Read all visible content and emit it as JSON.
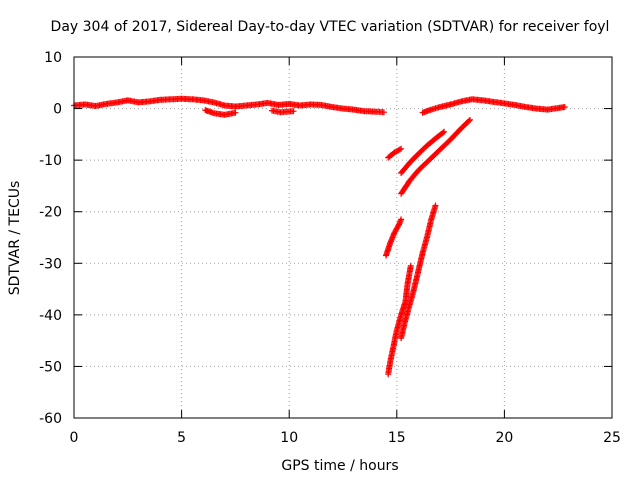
{
  "chart_data": {
    "type": "scatter",
    "title": "Day 304 of 2017, Sidereal Day-to-day VTEC variation (SDTVAR) for receiver foyl",
    "xlabel": "GPS time / hours",
    "ylabel": "SDTVAR / TECUs",
    "xlim": [
      0,
      25
    ],
    "ylim": [
      -60,
      10
    ],
    "xticks": [
      "0",
      "5",
      "10",
      "15",
      "20",
      "25"
    ],
    "yticks": [
      "10",
      "0",
      "-10",
      "-20",
      "-30",
      "-40",
      "-50",
      "-60"
    ],
    "grid": true,
    "marker": "plus",
    "color": "#ff0000",
    "series": [
      {
        "segments": [
          {
            "x": [
              0.0,
              0.5,
              1.0,
              1.5,
              2.0,
              2.5,
              3.0,
              3.5,
              4.0,
              4.5,
              5.0,
              5.5,
              6.0,
              6.5,
              7.0,
              7.5,
              8.0,
              8.5,
              9.0,
              9.5,
              10.0,
              10.5,
              11.0,
              11.5,
              12.0,
              12.5,
              13.0,
              13.5,
              14.0,
              14.4
            ],
            "y": [
              0.6,
              0.8,
              0.5,
              0.9,
              1.2,
              1.6,
              1.2,
              1.4,
              1.7,
              1.8,
              1.9,
              1.8,
              1.6,
              1.2,
              0.6,
              0.4,
              0.6,
              0.8,
              1.1,
              0.7,
              0.9,
              0.6,
              0.8,
              0.7,
              0.3,
              0.0,
              -0.2,
              -0.5,
              -0.6,
              -0.7
            ]
          },
          {
            "x": [
              6.1,
              6.5,
              7.0,
              7.5
            ],
            "y": [
              -0.3,
              -0.9,
              -1.2,
              -0.8
            ]
          },
          {
            "x": [
              9.2,
              9.6,
              10.2
            ],
            "y": [
              -0.4,
              -0.7,
              -0.5
            ]
          },
          {
            "x": [
              16.2,
              16.6,
              17.0,
              17.5,
              18.0,
              18.5,
              19.0,
              19.5,
              20.0,
              20.5,
              21.0,
              21.5,
              22.0,
              22.5,
              22.8
            ],
            "y": [
              -0.8,
              -0.2,
              0.3,
              0.8,
              1.4,
              1.8,
              1.6,
              1.3,
              1.0,
              0.7,
              0.3,
              0.0,
              -0.2,
              0.1,
              0.3
            ]
          },
          {
            "x": [
              14.6,
              14.9,
              15.2
            ],
            "y": [
              -9.5,
              -8.5,
              -7.8
            ]
          },
          {
            "x": [
              15.2,
              15.6,
              16.0,
              16.4,
              16.8,
              17.2
            ],
            "y": [
              -12.5,
              -10.5,
              -8.8,
              -7.2,
              -5.8,
              -4.5
            ]
          },
          {
            "x": [
              15.2,
              15.6,
              16.0,
              16.5,
              17.0,
              17.5,
              18.0,
              18.4
            ],
            "y": [
              -16.5,
              -14.0,
              -12.0,
              -10.0,
              -8.0,
              -6.0,
              -3.8,
              -2.2
            ]
          },
          {
            "x": [
              14.5,
              14.7,
              14.9,
              15.1,
              15.2
            ],
            "y": [
              -28.5,
              -26.0,
              -24.0,
              -22.5,
              -21.5
            ]
          },
          {
            "x": [
              14.6,
              14.7,
              14.85,
              15.0,
              15.2,
              15.4,
              15.5,
              15.65
            ],
            "y": [
              -51.5,
              -49.0,
              -46.0,
              -43.0,
              -40.0,
              -37.5,
              -34.0,
              -30.5
            ]
          },
          {
            "x": [
              15.2,
              15.4,
              15.6,
              15.8,
              16.0,
              16.2,
              16.4,
              16.6,
              16.8
            ],
            "y": [
              -44.5,
              -41.0,
              -38.0,
              -35.0,
              -31.5,
              -28.0,
              -25.0,
              -21.5,
              -18.8
            ]
          }
        ]
      }
    ]
  }
}
